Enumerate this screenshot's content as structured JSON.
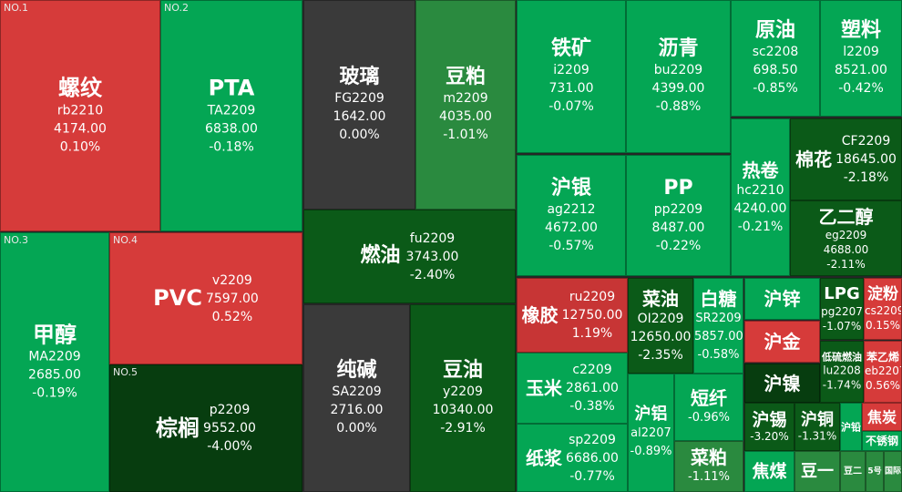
{
  "colors": {
    "red": "#d63b3a",
    "red2": "#c73535",
    "green": "#04a654",
    "green_mid": "#2a8a3f",
    "green_dark": "#0b5a18",
    "green_darker": "#073d0f",
    "gray": "#3a3a3a"
  },
  "tiles": [
    {
      "id": "rb",
      "tag": "NO.1",
      "name": "螺纹",
      "code": "rb2210",
      "price": "4174.00",
      "change": "0.10%",
      "color": "#d63b3a"
    },
    {
      "id": "ta",
      "tag": "NO.2",
      "name": "PTA",
      "code": "TA2209",
      "price": "6838.00",
      "change": "-0.18%",
      "color": "#04a654"
    },
    {
      "id": "fg",
      "name": "玻璃",
      "code": "FG2209",
      "price": "1642.00",
      "change": "0.00%",
      "color": "#3a3a3a"
    },
    {
      "id": "m",
      "name": "豆粕",
      "code": "m2209",
      "price": "4035.00",
      "change": "-1.01%",
      "color": "#2a8a3f"
    },
    {
      "id": "i",
      "name": "铁矿",
      "code": "i2209",
      "price": "731.00",
      "change": "-0.07%",
      "color": "#04a654"
    },
    {
      "id": "bu",
      "name": "沥青",
      "code": "bu2209",
      "price": "4399.00",
      "change": "-0.88%",
      "color": "#04a654"
    },
    {
      "id": "sc",
      "name": "原油",
      "code": "sc2208",
      "price": "698.50",
      "change": "-0.85%",
      "color": "#04a654"
    },
    {
      "id": "l",
      "name": "塑料",
      "code": "l2209",
      "price": "8521.00",
      "change": "-0.42%",
      "color": "#04a654"
    },
    {
      "id": "ag",
      "name": "沪银",
      "code": "ag2212",
      "price": "4672.00",
      "change": "-0.57%",
      "color": "#04a654"
    },
    {
      "id": "pp",
      "name": "PP",
      "code": "pp2209",
      "price": "8487.00",
      "change": "-0.22%",
      "color": "#04a654"
    },
    {
      "id": "hc",
      "name": "热卷",
      "code": "hc2210",
      "price": "4240.00",
      "change": "-0.21%",
      "color": "#04a654"
    },
    {
      "id": "cf",
      "name": "棉花",
      "code": "CF2209",
      "price": "18645.00",
      "change": "-2.18%",
      "color": "#0b5a18"
    },
    {
      "id": "eg",
      "name": "乙二醇",
      "code": "eg2209",
      "price": "4688.00",
      "change": "-2.11%",
      "color": "#0b5a18"
    },
    {
      "id": "fu",
      "name": "燃油",
      "code": "fu2209",
      "price": "3743.00",
      "change": "-2.40%",
      "color": "#0b5a18"
    },
    {
      "id": "ma",
      "tag": "NO.3",
      "name": "甲醇",
      "code": "MA2209",
      "price": "2685.00",
      "change": "-0.19%",
      "color": "#04a654"
    },
    {
      "id": "v",
      "tag": "NO.4",
      "name": "PVC",
      "code": "v2209",
      "price": "7597.00",
      "change": "0.52%",
      "color": "#d63b3a"
    },
    {
      "id": "p",
      "tag": "NO.5",
      "name": "棕榈",
      "code": "p2209",
      "price": "9552.00",
      "change": "-4.00%",
      "color": "#073d0f"
    },
    {
      "id": "sa",
      "name": "纯碱",
      "code": "SA2209",
      "price": "2716.00",
      "change": "0.00%",
      "color": "#3a3a3a"
    },
    {
      "id": "y",
      "name": "豆油",
      "code": "y2209",
      "price": "10340.00",
      "change": "-2.91%",
      "color": "#0b5a18"
    },
    {
      "id": "ru",
      "name": "橡胶",
      "code": "ru2209",
      "price": "12750.00",
      "change": "1.19%",
      "color": "#c73535"
    },
    {
      "id": "oi",
      "name": "菜油",
      "code": "OI2209",
      "price": "12650.00",
      "change": "-2.35%",
      "color": "#0b5a18"
    },
    {
      "id": "sr",
      "name": "白糖",
      "code": "SR2209",
      "price": "5857.00",
      "change": "-0.58%",
      "color": "#04a654"
    },
    {
      "id": "zn",
      "name": "沪锌",
      "color": "#04a654"
    },
    {
      "id": "pg",
      "name": "LPG",
      "code": "pg2207",
      "change": "-1.07%",
      "color": "#0b5a18"
    },
    {
      "id": "cs",
      "name": "淀粉",
      "code": "cs2209",
      "change": "0.15%",
      "color": "#d63b3a"
    },
    {
      "id": "au",
      "name": "沪金",
      "color": "#d63b3a"
    },
    {
      "id": "lu",
      "name": "低硫燃油",
      "code": "lu2208",
      "change": "-1.74%",
      "color": "#0b5a18"
    },
    {
      "id": "eb",
      "name": "苯乙烯",
      "code": "eb2207",
      "change": "0.56%",
      "color": "#d63b3a"
    },
    {
      "id": "ni",
      "name": "沪镍",
      "color": "#073d0f"
    },
    {
      "id": "c",
      "name": "玉米",
      "code": "c2209",
      "price": "2861.00",
      "change": "-0.38%",
      "color": "#04a654"
    },
    {
      "id": "al",
      "name": "沪铝",
      "code": "al2207",
      "change": "-0.89%",
      "color": "#04a654"
    },
    {
      "id": "jd",
      "name": "短纤",
      "change": "-0.96%",
      "color": "#04a654"
    },
    {
      "id": "sn",
      "name": "沪锡",
      "change": "-3.20%",
      "color": "#0b5a18"
    },
    {
      "id": "cu",
      "name": "沪铜",
      "change": "-1.31%",
      "color": "#0b5a18"
    },
    {
      "id": "pb",
      "name": "沪铅",
      "color": "#04a654"
    },
    {
      "id": "j",
      "name": "焦炭",
      "color": "#d63b3a"
    },
    {
      "id": "ss",
      "name": "不锈钢",
      "color": "#04a654"
    },
    {
      "id": "sp",
      "name": "纸浆",
      "code": "sp2209",
      "price": "6686.00",
      "change": "-0.77%",
      "color": "#04a654"
    },
    {
      "id": "rm",
      "name": "菜粕",
      "change": "-1.11%",
      "color": "#2a8a3f"
    },
    {
      "id": "jm",
      "name": "焦煤",
      "color": "#04a654"
    },
    {
      "id": "b",
      "name": "豆一",
      "color": "#2a8a3f"
    },
    {
      "id": "b2",
      "name": "豆二",
      "color": "#2a8a3f"
    },
    {
      "id": "s5",
      "name": "5号",
      "color": "#2a8a3f"
    },
    {
      "id": "bc",
      "name": "国际铜",
      "color": "#2a8a3f"
    }
  ]
}
